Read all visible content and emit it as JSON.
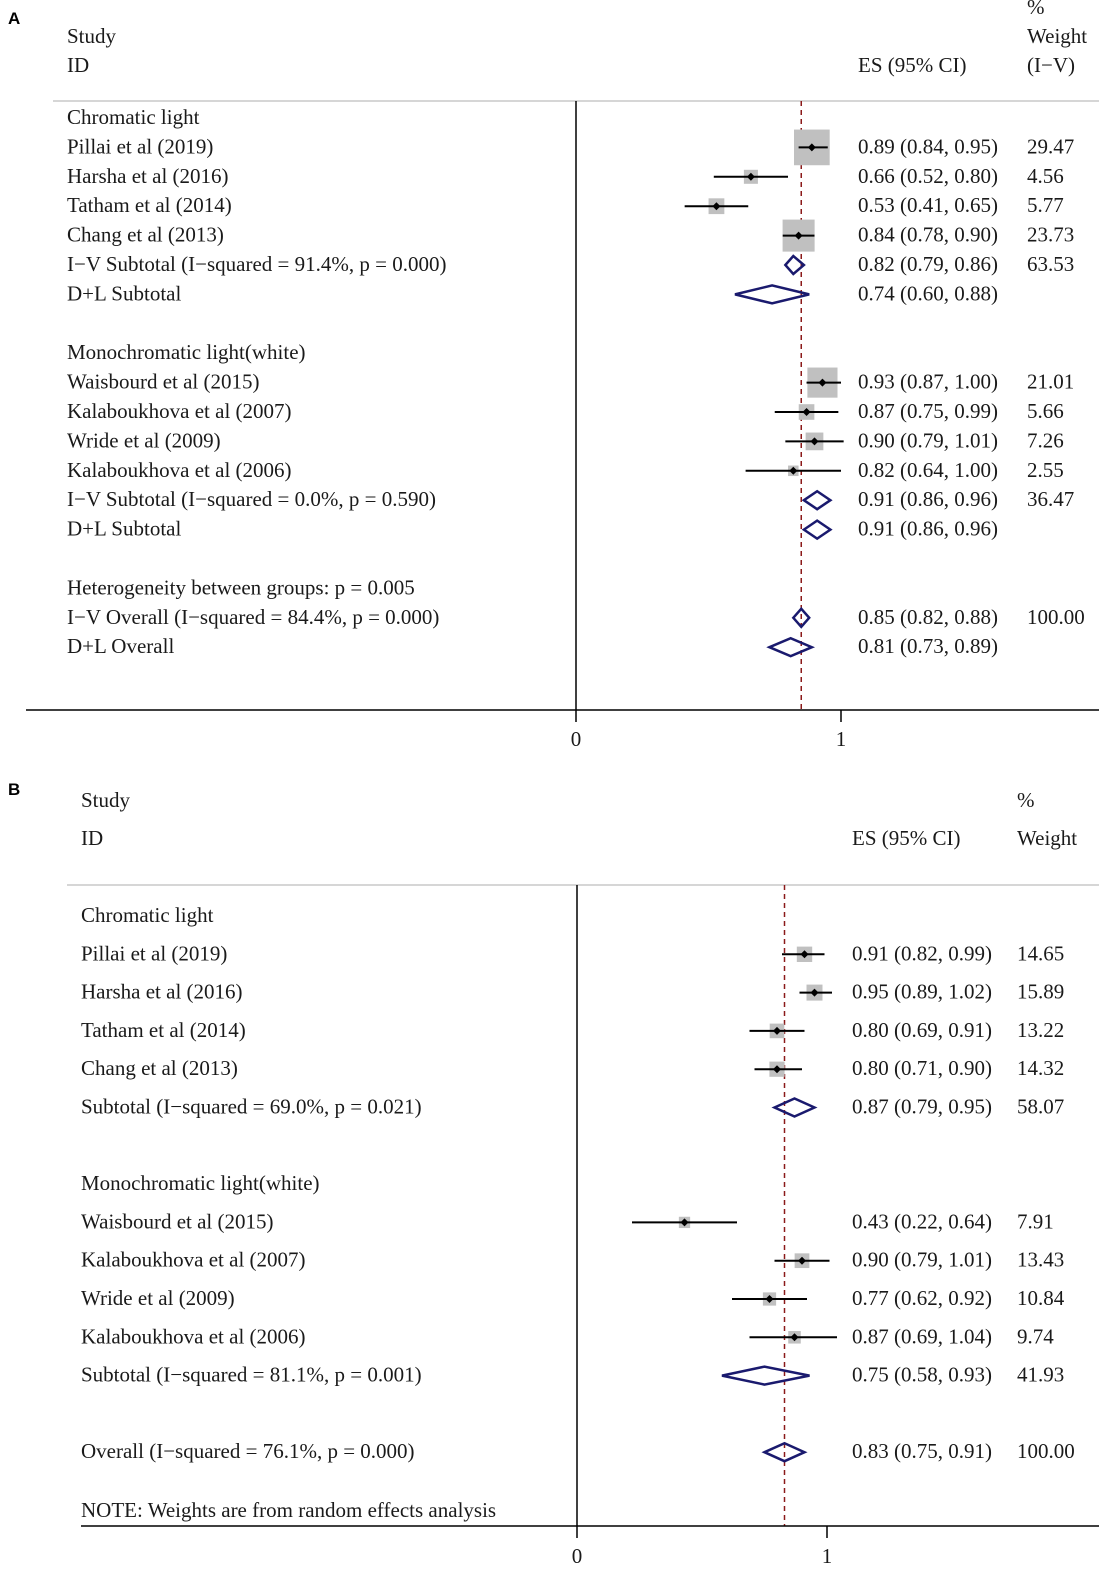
{
  "chart_data": [
    {
      "type": "forest",
      "panel_label": "A",
      "header": {
        "study": "Study",
        "id": "ID",
        "es": "ES (95% CI)",
        "weight_pct": "%",
        "weight_label": "Weight",
        "weight_sub": "(I−V)"
      },
      "x_ticks": [
        "0",
        "1"
      ],
      "overall_line": 0.85,
      "rows": [
        {
          "kind": "group",
          "label": "Chromatic light"
        },
        {
          "kind": "study",
          "label": "Pillai et al (2019)",
          "es": 0.89,
          "lo": 0.84,
          "hi": 0.95,
          "ci_text": "0.89 (0.84, 0.95)",
          "weight": "29.47"
        },
        {
          "kind": "study",
          "label": "Harsha et al (2016)",
          "es": 0.66,
          "lo": 0.52,
          "hi": 0.8,
          "ci_text": "0.66 (0.52, 0.80)",
          "weight": "4.56"
        },
        {
          "kind": "study",
          "label": "Tatham et al (2014)",
          "es": 0.53,
          "lo": 0.41,
          "hi": 0.65,
          "ci_text": "0.53 (0.41, 0.65)",
          "weight": "5.77"
        },
        {
          "kind": "study",
          "label": "Chang et al (2013)",
          "es": 0.84,
          "lo": 0.78,
          "hi": 0.9,
          "ci_text": "0.84 (0.78, 0.90)",
          "weight": "23.73"
        },
        {
          "kind": "summary",
          "label": "I−V Subtotal  (I−squared = 91.4%, p = 0.000)",
          "es": 0.82,
          "lo": 0.79,
          "hi": 0.86,
          "ci_text": "0.82 (0.79, 0.86)",
          "weight": "63.53"
        },
        {
          "kind": "summary",
          "label": "D+L Subtotal",
          "es": 0.74,
          "lo": 0.6,
          "hi": 0.88,
          "ci_text": "0.74 (0.60, 0.88)",
          "weight": ""
        },
        {
          "kind": "blank"
        },
        {
          "kind": "group",
          "label": "Monochromatic light(white)"
        },
        {
          "kind": "study",
          "label": "Waisbourd et al (2015)",
          "es": 0.93,
          "lo": 0.87,
          "hi": 1.0,
          "ci_text": "0.93 (0.87, 1.00)",
          "weight": "21.01"
        },
        {
          "kind": "study",
          "label": "Kalaboukhova et al (2007)",
          "es": 0.87,
          "lo": 0.75,
          "hi": 0.99,
          "ci_text": "0.87 (0.75, 0.99)",
          "weight": "5.66"
        },
        {
          "kind": "study",
          "label": "Wride et al (2009)",
          "es": 0.9,
          "lo": 0.79,
          "hi": 1.01,
          "ci_text": "0.90 (0.79, 1.01)",
          "weight": "7.26"
        },
        {
          "kind": "study",
          "label": "Kalaboukhova et al (2006)",
          "es": 0.82,
          "lo": 0.64,
          "hi": 1.0,
          "ci_text": "0.82 (0.64, 1.00)",
          "weight": "2.55"
        },
        {
          "kind": "summary",
          "label": "I−V Subtotal  (I−squared = 0.0%, p = 0.590)",
          "es": 0.91,
          "lo": 0.86,
          "hi": 0.96,
          "ci_text": "0.91 (0.86, 0.96)",
          "weight": "36.47"
        },
        {
          "kind": "summary",
          "label": "D+L Subtotal",
          "es": 0.91,
          "lo": 0.86,
          "hi": 0.96,
          "ci_text": "0.91 (0.86, 0.96)",
          "weight": ""
        },
        {
          "kind": "blank"
        },
        {
          "kind": "group",
          "label": "Heterogeneity between groups: p = 0.005"
        },
        {
          "kind": "summary",
          "label": "I−V Overall  (I−squared = 84.4%, p = 0.000)",
          "es": 0.85,
          "lo": 0.82,
          "hi": 0.88,
          "ci_text": "0.85 (0.82, 0.88)",
          "weight": "100.00"
        },
        {
          "kind": "summary",
          "label": "D+L Overall",
          "es": 0.81,
          "lo": 0.73,
          "hi": 0.89,
          "ci_text": "0.81 (0.73, 0.89)",
          "weight": ""
        }
      ]
    },
    {
      "type": "forest",
      "panel_label": "B",
      "header": {
        "study": "Study",
        "id": "ID",
        "es": "ES (95% CI)",
        "weight_pct": "%",
        "weight_label": "Weight",
        "weight_sub": ""
      },
      "x_ticks": [
        "0",
        "1"
      ],
      "overall_line": 0.83,
      "note": "NOTE: Weights are from random effects analysis",
      "rows": [
        {
          "kind": "group",
          "label": "Chromatic light"
        },
        {
          "kind": "study",
          "label": "Pillai et al (2019)",
          "es": 0.91,
          "lo": 0.82,
          "hi": 0.99,
          "ci_text": "0.91 (0.82, 0.99)",
          "weight": "14.65"
        },
        {
          "kind": "study",
          "label": "Harsha et al (2016)",
          "es": 0.95,
          "lo": 0.89,
          "hi": 1.02,
          "ci_text": "0.95 (0.89, 1.02)",
          "weight": "15.89"
        },
        {
          "kind": "study",
          "label": "Tatham et al (2014)",
          "es": 0.8,
          "lo": 0.69,
          "hi": 0.91,
          "ci_text": "0.80 (0.69, 0.91)",
          "weight": "13.22"
        },
        {
          "kind": "study",
          "label": "Chang et al (2013)",
          "es": 0.8,
          "lo": 0.71,
          "hi": 0.9,
          "ci_text": "0.80 (0.71, 0.90)",
          "weight": "14.32"
        },
        {
          "kind": "summary",
          "label": "Subtotal  (I−squared = 69.0%, p = 0.021)",
          "es": 0.87,
          "lo": 0.79,
          "hi": 0.95,
          "ci_text": "0.87 (0.79, 0.95)",
          "weight": "58.07"
        },
        {
          "kind": "blank"
        },
        {
          "kind": "group",
          "label": "Monochromatic light(white)"
        },
        {
          "kind": "study",
          "label": "Waisbourd et al (2015)",
          "es": 0.43,
          "lo": 0.22,
          "hi": 0.64,
          "ci_text": "0.43 (0.22, 0.64)",
          "weight": "7.91"
        },
        {
          "kind": "study",
          "label": "Kalaboukhova et al (2007)",
          "es": 0.9,
          "lo": 0.79,
          "hi": 1.01,
          "ci_text": "0.90 (0.79, 1.01)",
          "weight": "13.43"
        },
        {
          "kind": "study",
          "label": "Wride et al (2009)",
          "es": 0.77,
          "lo": 0.62,
          "hi": 0.92,
          "ci_text": "0.77 (0.62, 0.92)",
          "weight": "10.84"
        },
        {
          "kind": "study",
          "label": "Kalaboukhova et al (2006)",
          "es": 0.87,
          "lo": 0.69,
          "hi": 1.04,
          "ci_text": "0.87 (0.69, 1.04)",
          "weight": "9.74"
        },
        {
          "kind": "summary",
          "label": "Subtotal  (I−squared = 81.1%, p = 0.001)",
          "es": 0.75,
          "lo": 0.58,
          "hi": 0.93,
          "ci_text": "0.75 (0.58, 0.93)",
          "weight": "41.93"
        },
        {
          "kind": "blank"
        },
        {
          "kind": "summary",
          "label": "Overall  (I−squared = 76.1%, p = 0.000)",
          "es": 0.83,
          "lo": 0.75,
          "hi": 0.91,
          "ci_text": "0.83 (0.75, 0.91)",
          "weight": "100.00"
        }
      ]
    }
  ],
  "colors": {
    "text": "#1a1a1a",
    "axis": "#000000",
    "null_line": "#000000",
    "ref_line": "#8b1a1a",
    "diamond": "#1a1a6e",
    "weight_box": "#c0c0c0",
    "rule": "#c8c8c8"
  }
}
